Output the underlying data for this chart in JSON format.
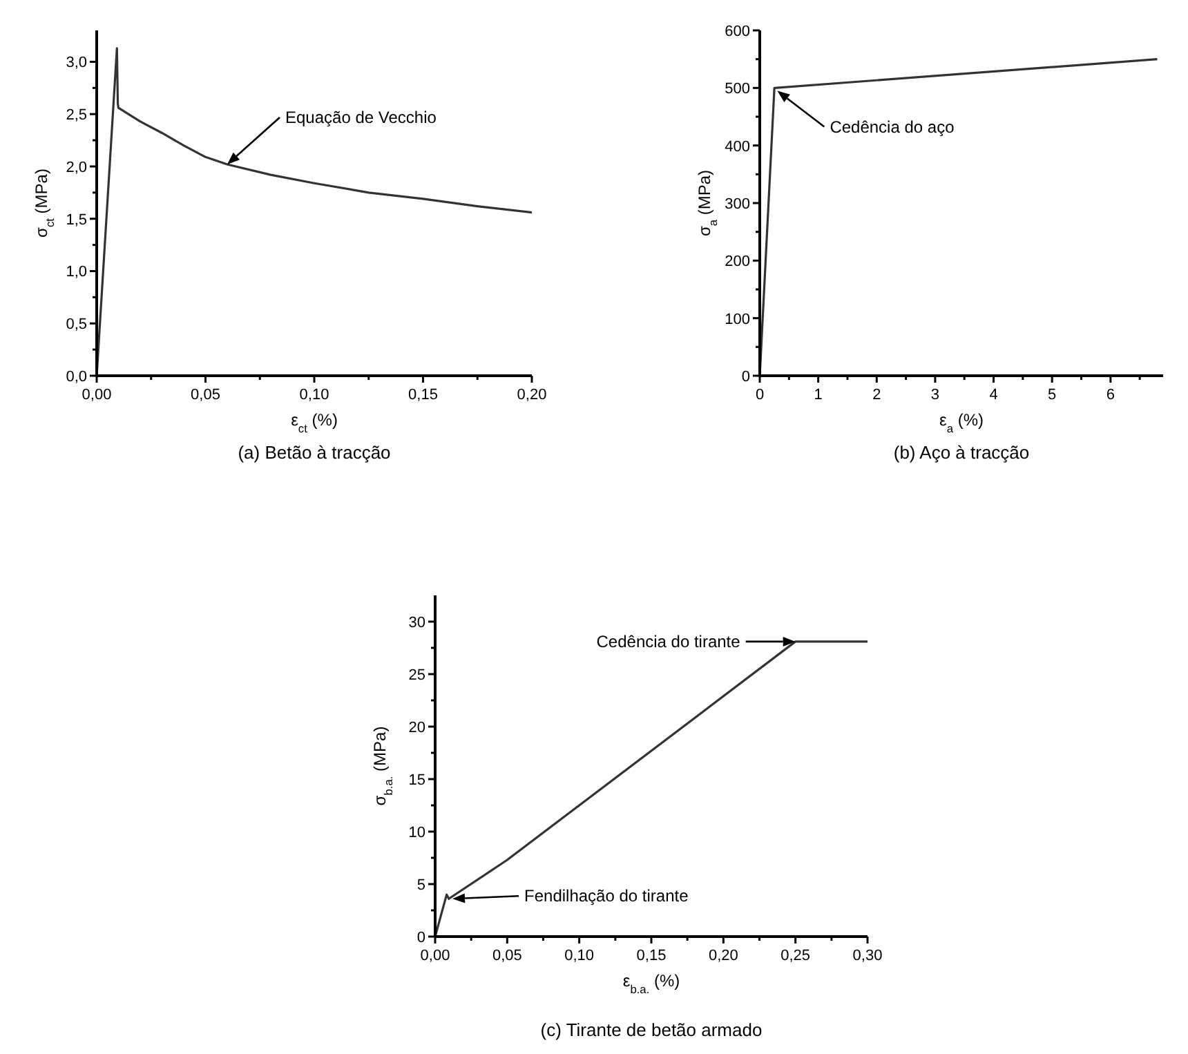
{
  "chart_data": [
    {
      "type": "line",
      "title": "(a) Betão à tracção",
      "xlabel": "ε$_{ct}$ (%)",
      "ylabel": "σ$_{ct}$ (MPa)",
      "color": "#333333",
      "x": [
        0,
        0.0093,
        0.0097,
        0.01,
        0.02,
        0.03,
        0.04,
        0.05,
        0.06,
        0.08,
        0.1,
        0.125,
        0.15,
        0.175,
        0.2
      ],
      "values": [
        0,
        3.13,
        2.6,
        2.56,
        2.43,
        2.32,
        2.2,
        2.09,
        2.02,
        1.92,
        1.84,
        1.75,
        1.69,
        1.62,
        1.56
      ],
      "xlim": [
        0,
        0.2
      ],
      "ylim": [
        0,
        3.3
      ],
      "xticks": [
        {
          "value": 0,
          "label": "0,00"
        },
        {
          "value": 0.025,
          "label": null
        },
        {
          "value": 0.05,
          "label": "0,05"
        },
        {
          "value": 0.075,
          "label": null
        },
        {
          "value": 0.1,
          "label": "0,10"
        },
        {
          "value": 0.125,
          "label": null
        },
        {
          "value": 0.15,
          "label": "0,15"
        },
        {
          "value": 0.175,
          "label": null
        },
        {
          "value": 0.2,
          "label": "0,20"
        }
      ],
      "yticks": [
        {
          "value": 0,
          "label": "0,0"
        },
        {
          "value": 0.25,
          "label": null
        },
        {
          "value": 0.5,
          "label": "0,5"
        },
        {
          "value": 0.75,
          "label": null
        },
        {
          "value": 1,
          "label": "1,0"
        },
        {
          "value": 1.25,
          "label": null
        },
        {
          "value": 1.5,
          "label": "1,5"
        },
        {
          "value": 1.75,
          "label": null
        },
        {
          "value": 2,
          "label": "2,0"
        },
        {
          "value": 2.25,
          "label": null
        },
        {
          "value": 2.5,
          "label": "2,5"
        },
        {
          "value": 2.75,
          "label": null
        },
        {
          "value": 3,
          "label": "3,0"
        }
      ],
      "annotations": [
        {
          "text": "Equação de Vecchio",
          "x": 0.06,
          "y": 2.02
        }
      ],
      "grid": false
    },
    {
      "type": "line",
      "title": "(b) Aço à tracção",
      "xlabel": "ε$_{a}$ (%)",
      "ylabel": "σ$_{a}$ (MPa)",
      "color": "#333333",
      "x": [
        0,
        0.25,
        6.8
      ],
      "values": [
        0,
        500,
        550
      ],
      "xlim": [
        0,
        6.9
      ],
      "ylim": [
        0,
        600
      ],
      "xticks": [
        0,
        {
          "value": 0.5,
          "label": null
        },
        1,
        {
          "value": 1.5,
          "label": null
        },
        2,
        {
          "value": 2.5,
          "label": null
        },
        3,
        {
          "value": 3.5,
          "label": null
        },
        4,
        {
          "value": 4.5,
          "label": null
        },
        5,
        {
          "value": 5.5,
          "label": null
        },
        6,
        {
          "value": 6.5,
          "label": null
        }
      ],
      "yticks": [
        0,
        {
          "value": 50,
          "label": null
        },
        100,
        {
          "value": 150,
          "label": null
        },
        200,
        {
          "value": 250,
          "label": null
        },
        300,
        {
          "value": 350,
          "label": null
        },
        400,
        {
          "value": 450,
          "label": null
        },
        500,
        {
          "value": 550,
          "label": null
        },
        600
      ],
      "annotations": [
        {
          "text": "Cedência do aço",
          "x": 0.3,
          "y": 495
        }
      ],
      "grid": false
    },
    {
      "type": "line",
      "title": "(c) Tirante de betão armado",
      "xlabel": "ε$_{b.a.}$ (%)",
      "ylabel": "σ$_{b.a.}$ (MPa)",
      "color": "#333333",
      "x": [
        0,
        0.008,
        0.0095,
        0.05,
        0.25,
        0.3
      ],
      "values": [
        0,
        4.0,
        3.6,
        7.3,
        28.1,
        28.1
      ],
      "xlim": [
        0,
        0.3
      ],
      "ylim": [
        0,
        32.5
      ],
      "xticks": [
        {
          "value": 0,
          "label": "0,00"
        },
        {
          "value": 0.025,
          "label": null
        },
        {
          "value": 0.05,
          "label": "0,05"
        },
        {
          "value": 0.075,
          "label": null
        },
        {
          "value": 0.1,
          "label": "0,10"
        },
        {
          "value": 0.125,
          "label": null
        },
        {
          "value": 0.15,
          "label": "0,15"
        },
        {
          "value": 0.175,
          "label": null
        },
        {
          "value": 0.2,
          "label": "0,20"
        },
        {
          "value": 0.225,
          "label": null
        },
        {
          "value": 0.25,
          "label": "0,25"
        },
        {
          "value": 0.275,
          "label": null
        },
        {
          "value": 0.3,
          "label": "0,30"
        }
      ],
      "yticks": [
        0,
        {
          "value": 2.5,
          "label": null
        },
        5,
        {
          "value": 7.5,
          "label": null
        },
        10,
        {
          "value": 12.5,
          "label": null
        },
        15,
        {
          "value": 17.5,
          "label": null
        },
        20,
        {
          "value": 22.5,
          "label": null
        },
        25,
        {
          "value": 27.5,
          "label": null
        },
        30
      ],
      "annotations": [
        {
          "text": "Cedência do tirante",
          "x": 0.25,
          "y": 28.1
        },
        {
          "text": "Fendilhação do tirante",
          "x": 0.012,
          "y": 3.6
        }
      ],
      "grid": false
    }
  ]
}
